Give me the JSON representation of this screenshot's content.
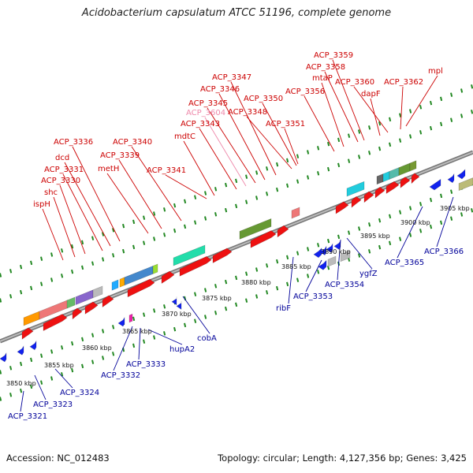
{
  "title": "Acidobacterium capsulatum ATCC 51196, complete genome",
  "accession": "Accession: NC_012483",
  "topology": "Topology: circular; Length: 4,127,356 bp; Genes: 3,425",
  "colors": {
    "plus_label": "#cc0000",
    "minus_label": "#000099",
    "pale_label": "#ee88aa",
    "plus_tick": "#228822",
    "backbone": "#888888"
  },
  "scale_ticks": [
    {
      "label": "3850 kbp",
      "kbp": 3850
    },
    {
      "label": "3855 kbp",
      "kbp": 3855
    },
    {
      "label": "3860 kbp",
      "kbp": 3860
    },
    {
      "label": "3865 kbp",
      "kbp": 3865
    },
    {
      "label": "3870 kbp",
      "kbp": 3870
    },
    {
      "label": "3875 kbp",
      "kbp": 3875
    },
    {
      "label": "3880 kbp",
      "kbp": 3880
    },
    {
      "label": "3885 kbp",
      "kbp": 3885
    },
    {
      "label": "3890 kbp",
      "kbp": 3890
    },
    {
      "label": "3895 kbp",
      "kbp": 3895
    },
    {
      "label": "3900 kbp",
      "kbp": 3900
    },
    {
      "label": "3905 kbp",
      "kbp": 3905
    }
  ],
  "plus_strand_labels": [
    "ispH",
    "shc",
    "ACP_3330",
    "ACP_3331",
    "dcd",
    "ACP_3336",
    "metH",
    "ACP_3339",
    "ACP_3340",
    "ACP_3341",
    "mdtC",
    "ACP_3343",
    "ACP_3604",
    "ACP_3345",
    "ACP_3346",
    "ACP_3347",
    "ACP_3348",
    "ACP_3350",
    "ACP_3351",
    "ACP_3356",
    "mtaP",
    "ACP_3358",
    "ACP_3359",
    "dapF",
    "ACP_3360",
    "ACP_3362",
    "mpl"
  ],
  "minus_strand_labels": [
    "ACP_3321",
    "ACP_3323",
    "ACP_3324",
    "ACP_3332",
    "ACP_3333",
    "hupA2",
    "cobA",
    "ribF",
    "ACP_3353",
    "ACP_3354",
    "ygfZ",
    "ACP_3365",
    "ACP_3366"
  ]
}
